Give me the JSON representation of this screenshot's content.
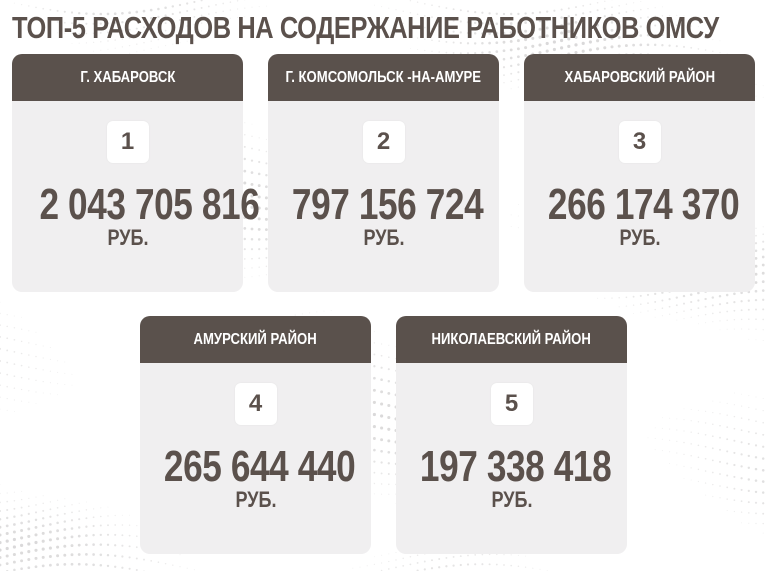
{
  "title": "ТОП-5  РАСХОДОВ НА СОДЕРЖАНИЕ РАБОТНИКОВ ОМСУ",
  "colors": {
    "header_bg": "#5a514c",
    "card_bg": "#f0eff0",
    "text": "#5b514c"
  },
  "cards": [
    {
      "region": "Г. ХАБАРОВСК",
      "rank": "1",
      "amount": "2 043 705 816",
      "currency": "РУБ."
    },
    {
      "region": "Г. КОМСОМОЛЬСК -НА-АМУРЕ",
      "rank": "2",
      "amount": "797 156 724",
      "currency": "РУБ."
    },
    {
      "region": "ХАБАРОВСКИЙ РАЙОН",
      "rank": "3",
      "amount": "266 174 370",
      "currency": "РУБ."
    },
    {
      "region": "АМУРСКИЙ РАЙОН",
      "rank": "4",
      "amount": "265 644 440",
      "currency": "РУБ."
    },
    {
      "region": "НИКОЛАЕВСКИЙ РАЙОН",
      "rank": "5",
      "amount": "197 338 418",
      "currency": "РУБ."
    }
  ]
}
